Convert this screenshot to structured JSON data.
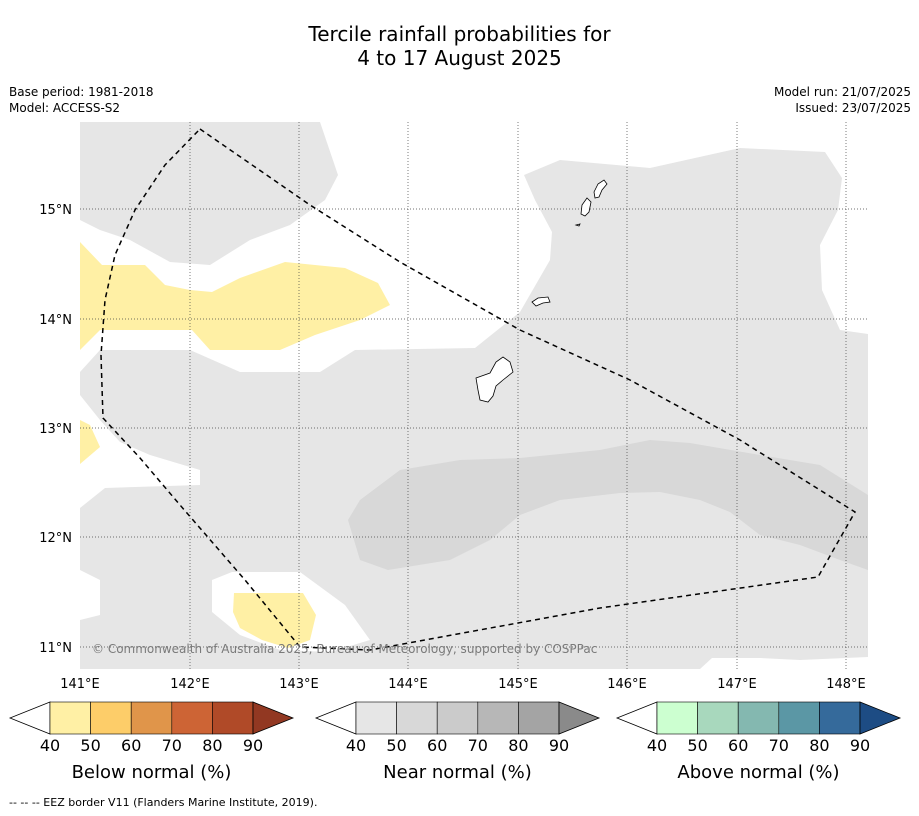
{
  "title_line1": "Tercile rainfall probabilities for",
  "title_line2": "4 to 17 August 2025",
  "base_period": "Base period: 1981-2018",
  "model": "Model: ACCESS-S2",
  "model_run": "Model run: 21/07/2025",
  "issued": "Issued: 23/07/2025",
  "copyright": "© Commonwealth of Australia 2025, Bureau of Meteorology, supported by COSPPac",
  "footnote": "--  --  -- EEZ border V11 (Flanders Marine Institute, 2019).",
  "map": {
    "lon_labels": [
      "141°E",
      "142°E",
      "143°E",
      "144°E",
      "145°E",
      "146°E",
      "147°E",
      "148°E"
    ],
    "lat_labels": [
      "15°N",
      "14°N",
      "13°N",
      "12°N",
      "11°N"
    ]
  },
  "colorbars": [
    {
      "label": "Below normal (%)",
      "ticks": [
        "40",
        "50",
        "60",
        "70",
        "80",
        "90"
      ],
      "colors": [
        "#fff0a5",
        "#fdcd69",
        "#e0954a",
        "#cd6435",
        "#b04a28",
        "#923822"
      ]
    },
    {
      "label": "Near normal (%)",
      "ticks": [
        "40",
        "50",
        "60",
        "70",
        "80",
        "90"
      ],
      "colors": [
        "#e6e6e6",
        "#d8d8d8",
        "#cbcbcb",
        "#b7b7b7",
        "#a4a4a4",
        "#8a8a8a"
      ]
    },
    {
      "label": "Above normal (%)",
      "ticks": [
        "40",
        "50",
        "60",
        "70",
        "80",
        "90"
      ],
      "colors": [
        "#ccffd0",
        "#a8d8bd",
        "#84b8b0",
        "#5b97a5",
        "#356a9b",
        "#1d4c84"
      ]
    }
  ]
}
